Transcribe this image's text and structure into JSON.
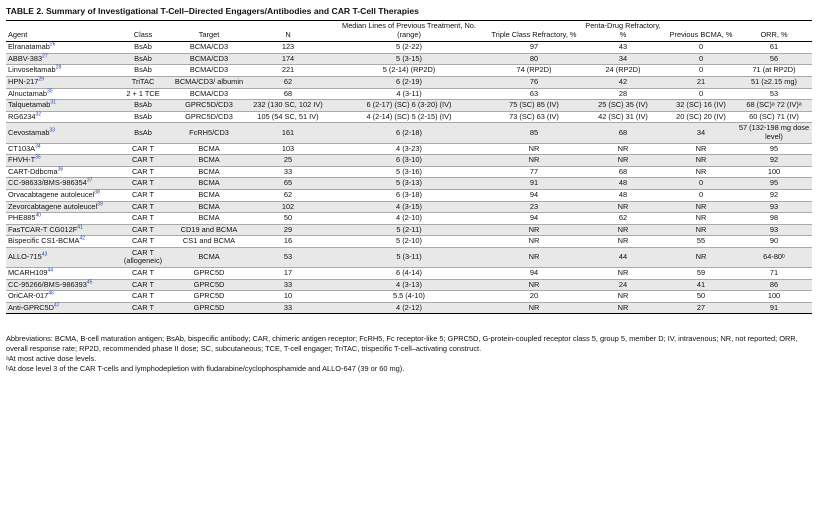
{
  "title": "TABLE 2.  Summary of Investigational T-Cell–Directed Engagers/Antibodies and CAR T-Cell Therapies",
  "headers": [
    "Agent",
    "Class",
    "Target",
    "N",
    "Median Lines of Previous Treatment, No. (range)",
    "Triple Class Refractory, %",
    "Penta-Drug Refractory, %",
    "Previous BCMA, %",
    "ORR, %"
  ],
  "rows": [
    {
      "agent": "Elranatamab",
      "ref": "26",
      "class": "BsAb",
      "target": "BCMA/CD3",
      "n": "123",
      "lines": "5 (2-22)",
      "triple": "97",
      "penta": "43",
      "bcma": "0",
      "orr": "61"
    },
    {
      "agent": "ABBV-383",
      "ref": "27",
      "class": "BsAb",
      "target": "BCMA/CD3",
      "n": "174",
      "lines": "5 (3-15)",
      "triple": "80",
      "penta": "34",
      "bcma": "0",
      "orr": "56"
    },
    {
      "agent": "Linvoseltamab",
      "ref": "28",
      "class": "BsAb",
      "target": "BCMA/CD3",
      "n": "221",
      "lines": "5 (2-14) (RP2D)",
      "triple": "74 (RP2D)",
      "penta": "24 (RP2D)",
      "bcma": "0",
      "orr": "71 (at RP2D)"
    },
    {
      "agent": "HPN-217",
      "ref": "29",
      "class": "TriTAC",
      "target": "BCMA/CD3/ albumin",
      "n": "62",
      "lines": "6 (2-19)",
      "triple": "76",
      "penta": "42",
      "bcma": "21",
      "orr": "51 (≥2.15 mg)"
    },
    {
      "agent": "Alnuctamab",
      "ref": "30",
      "class": "2 + 1 TCE",
      "target": "BCMA/CD3",
      "n": "68",
      "lines": "4 (3-11)",
      "triple": "63",
      "penta": "28",
      "bcma": "0",
      "orr": "53"
    },
    {
      "agent": "Talquetamab",
      "ref": "31",
      "class": "BsAb",
      "target": "GPRC5D/CD3",
      "n": "232 (130 SC, 102 IV)",
      "lines": "6 (2-17) (SC) 6 (3-20) (IV)",
      "triple": "75 (SC) 85 (IV)",
      "penta": "25 (SC) 35 (IV)",
      "bcma": "32 (SC) 16 (IV)",
      "orr": "68 (SC)ᵃ 72 (IV)ᵃ"
    },
    {
      "agent": "RG6234",
      "ref": "32",
      "class": "BsAb",
      "target": "GPRC5D/CD3",
      "n": "105 (54 SC, 51 IV)",
      "lines": "4 (2-14) (SC) 5 (2-15) (IV)",
      "triple": "73 (SC) 63 (IV)",
      "penta": "42 (SC) 31 (IV)",
      "bcma": "20 (SC) 20 (IV)",
      "orr": "60 (SC) 71 (IV)"
    },
    {
      "agent": "Cevostamab",
      "ref": "33",
      "class": "BsAb",
      "target": "FcRH5/CD3",
      "n": "161",
      "lines": "6 (2-18)",
      "triple": "85",
      "penta": "68",
      "bcma": "34",
      "orr": "57 (132-198 mg dose level)"
    },
    {
      "agent": "CT103A",
      "ref": "34",
      "class": "CAR T",
      "target": "BCMA",
      "n": "103",
      "lines": "4 (3-23)",
      "triple": "NR",
      "penta": "NR",
      "bcma": "NR",
      "orr": "95"
    },
    {
      "agent": "FHVH-T",
      "ref": "35",
      "class": "CAR T",
      "target": "BCMA",
      "n": "25",
      "lines": "6 (3-10)",
      "triple": "NR",
      "penta": "NR",
      "bcma": "NR",
      "orr": "92"
    },
    {
      "agent": "CART-Ddbcma",
      "ref": "36",
      "class": "CAR T",
      "target": "BCMA",
      "n": "33",
      "lines": "5 (3-16)",
      "triple": "77",
      "penta": "68",
      "bcma": "NR",
      "orr": "100"
    },
    {
      "agent": "CC-98633/BMS-986354",
      "ref": "37",
      "class": "CAR T",
      "target": "BCMA",
      "n": "65",
      "lines": "5 (3-13)",
      "triple": "91",
      "penta": "48",
      "bcma": "0",
      "orr": "95"
    },
    {
      "agent": "Orvacabtagene autoleucel",
      "ref": "38",
      "class": "CAR T",
      "target": "BCMA",
      "n": "62",
      "lines": "6 (3-18)",
      "triple": "94",
      "penta": "48",
      "bcma": "0",
      "orr": "92"
    },
    {
      "agent": "Zevorcabtagene autoleucel",
      "ref": "39",
      "class": "CAR T",
      "target": "BCMA",
      "n": "102",
      "lines": "4 (3-15)",
      "triple": "23",
      "penta": "NR",
      "bcma": "NR",
      "orr": "93"
    },
    {
      "agent": "PHE885",
      "ref": "40",
      "class": "CAR T",
      "target": "BCMA",
      "n": "50",
      "lines": "4 (2-10)",
      "triple": "94",
      "penta": "62",
      "bcma": "NR",
      "orr": "98"
    },
    {
      "agent": "FasTCAR-T CG012F",
      "ref": "41",
      "class": "CAR T",
      "target": "CD19 and BCMA",
      "n": "29",
      "lines": "5 (2-11)",
      "triple": "NR",
      "penta": "NR",
      "bcma": "NR",
      "orr": "93"
    },
    {
      "agent": "Bispecific CS1-BCMA",
      "ref": "42",
      "class": "CAR T",
      "target": "CS1 and BCMA",
      "n": "16",
      "lines": "5 (2-10)",
      "triple": "NR",
      "penta": "NR",
      "bcma": "55",
      "orr": "90"
    },
    {
      "agent": "ALLO-715",
      "ref": "43",
      "class": "CAR T (allogeneic)",
      "target": "BCMA",
      "n": "53",
      "lines": "5 (3-11)",
      "triple": "NR",
      "penta": "44",
      "bcma": "NR",
      "orr": "64-80ᵇ"
    },
    {
      "agent": "MCARH109",
      "ref": "44",
      "class": "CAR T",
      "target": "GPRC5D",
      "n": "17",
      "lines": "6 (4-14)",
      "triple": "94",
      "penta": "NR",
      "bcma": "59",
      "orr": "71"
    },
    {
      "agent": "CC-95266/BMS-986393",
      "ref": "45",
      "class": "CAR T",
      "target": "GPRC5D",
      "n": "33",
      "lines": "4 (3-13)",
      "triple": "NR",
      "penta": "24",
      "bcma": "41",
      "orr": "86"
    },
    {
      "agent": "OriCAR-017",
      "ref": "46",
      "class": "CAR T",
      "target": "GPRC5D",
      "n": "10",
      "lines": "5.5 (4-10)",
      "triple": "20",
      "penta": "NR",
      "bcma": "50",
      "orr": "100"
    },
    {
      "agent": "Anti-GPRC5D",
      "ref": "47",
      "class": "CAR T",
      "target": "GPRC5D",
      "n": "33",
      "lines": "4 (2-12)",
      "triple": "NR",
      "penta": "NR",
      "bcma": "27",
      "orr": "91"
    }
  ],
  "footnotes": {
    "abbreviations": "Abbreviations: BCMA, B-cell maturation antigen; BsAb, bispecific antibody; CAR, chimeric antigen receptor; FcRH5, Fc receptor-like 5; GPRC5D, G-protein-coupled receptor class 5, group 5, member D; IV, intravenous; NR, not reported; ORR, overall response rate; RP2D, recommended phase II dose; SC, subcutaneous; TCE, T-cell engager; TriTAC, trispecific T-cell–activating construct.",
    "a": "ᵃAt most active dose levels.",
    "b": "ᵇAt dose level 3 of the CAR T-cells and lymphodepletion with fludarabine/cyclophosphamide and ALLO-647 (39 or 60 mg)."
  }
}
